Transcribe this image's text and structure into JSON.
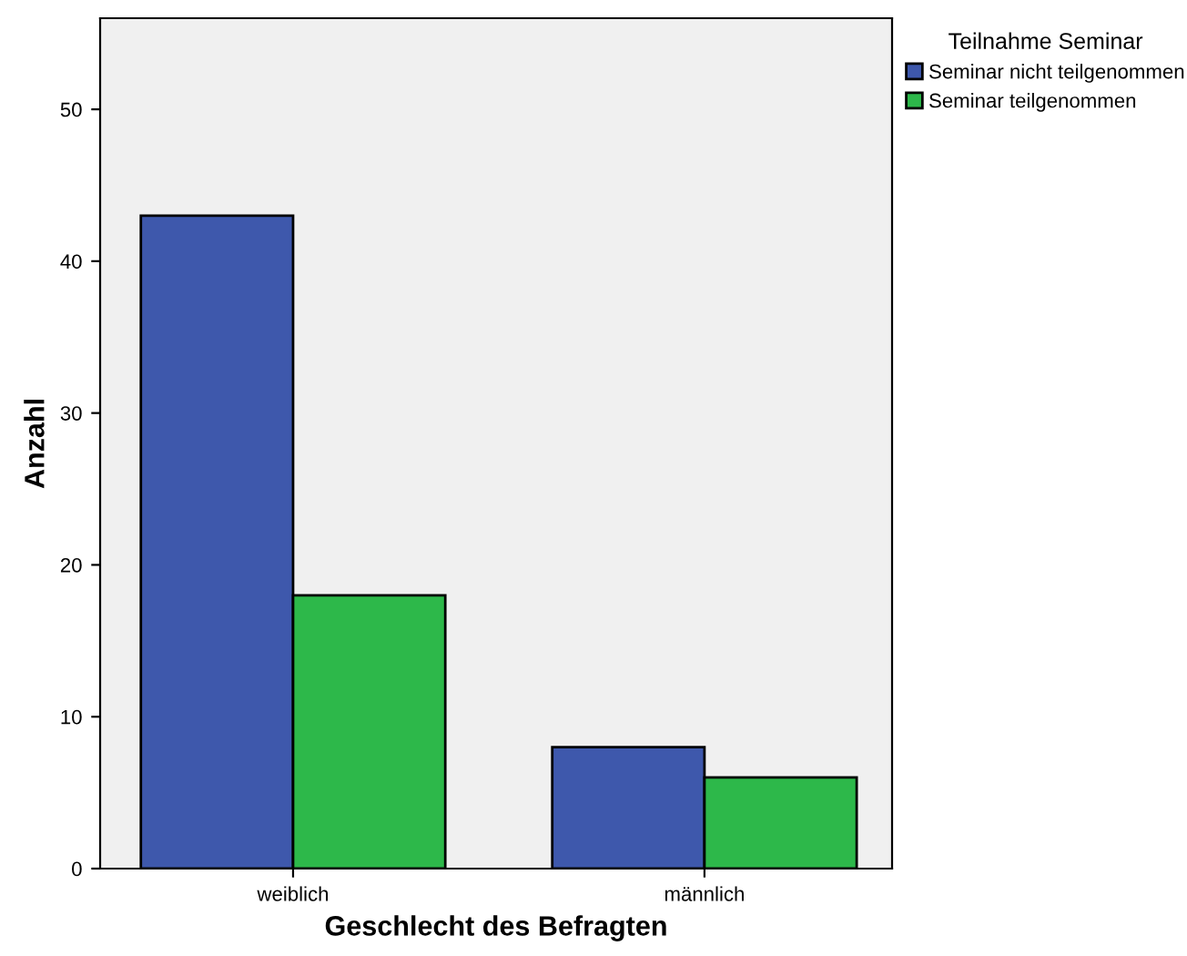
{
  "chart_data": {
    "type": "bar",
    "xlabel": "Geschlecht des Befragten",
    "ylabel": "Anzahl",
    "legend_title": "Teilnahme Seminar",
    "categories": [
      "weiblich",
      "männlich"
    ],
    "series": [
      {
        "name": "Seminar nicht teilgenommen",
        "color": "#3e58ac",
        "values": [
          43,
          8
        ]
      },
      {
        "name": "Seminar teilgenommen",
        "color": "#2db84a",
        "values": [
          18,
          6
        ]
      }
    ],
    "ylim": [
      0,
      56
    ],
    "yticks": [
      0,
      10,
      20,
      30,
      40,
      50
    ],
    "grid": false,
    "legend": "top right"
  }
}
